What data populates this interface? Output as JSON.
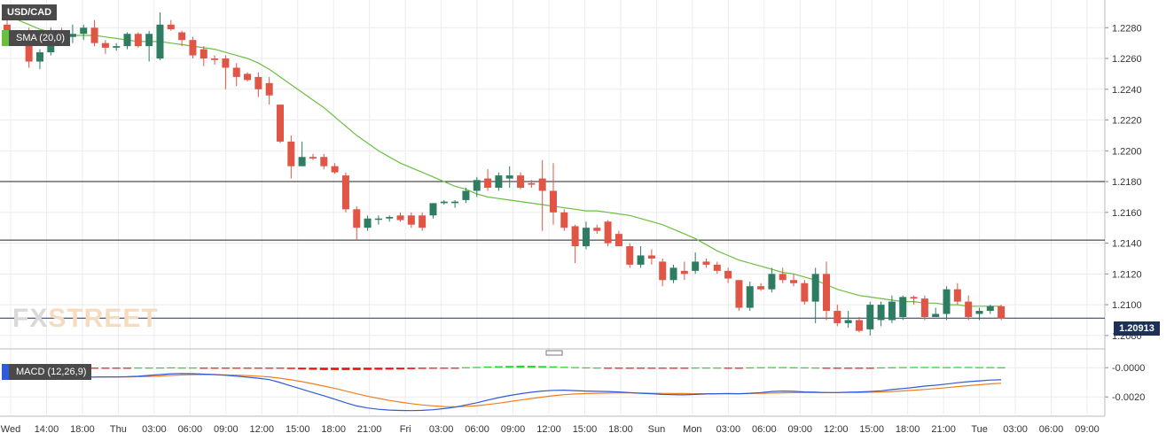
{
  "chart_data": {
    "type": "candlestick",
    "symbol": "USD/CAD",
    "legend": [
      "SMA (20,0)",
      "MACD (12,26,9)"
    ],
    "price_axis": {
      "ticks": [
        "1.2280",
        "1.2260",
        "1.2240",
        "1.2220",
        "1.2200",
        "1.2180",
        "1.2160",
        "1.2140",
        "1.2120",
        "1.2100",
        "1.2080"
      ],
      "range": [
        1.2073,
        1.2298
      ]
    },
    "current_price": "1.20913",
    "horizontal_levels": [
      1.218,
      1.2142,
      1.20913
    ],
    "macd_axis": {
      "ticks": [
        "-0.0000",
        "-0.0020"
      ],
      "range": [
        -0.0032,
        0.0008
      ]
    },
    "time_axis": [
      "Wed",
      "14:00",
      "18:00",
      "Thu",
      "03:00",
      "06:00",
      "09:00",
      "12:00",
      "15:00",
      "18:00",
      "21:00",
      "Fri",
      "03:00",
      "06:00",
      "09:00",
      "12:00",
      "15:00",
      "18:00",
      "Sun",
      "Mon",
      "03:00",
      "06:00",
      "09:00",
      "12:00",
      "15:00",
      "18:00",
      "21:00",
      "Tue",
      "03:00",
      "06:00",
      "09:00"
    ],
    "candles": [
      [
        1.2282,
        1.2286,
        1.227,
        1.2274
      ],
      [
        1.2274,
        1.2278,
        1.2268,
        1.2276
      ],
      [
        1.2276,
        1.228,
        1.2254,
        1.2258
      ],
      [
        1.2258,
        1.2266,
        1.2253,
        1.2264
      ],
      [
        1.2264,
        1.228,
        1.2262,
        1.2276
      ],
      [
        1.2276,
        1.228,
        1.227,
        1.2272
      ],
      [
        1.2274,
        1.2282,
        1.227,
        1.2276
      ],
      [
        1.2276,
        1.2282,
        1.2272,
        1.228
      ],
      [
        1.228,
        1.2285,
        1.2268,
        1.227
      ],
      [
        1.227,
        1.2272,
        1.2263,
        1.2267
      ],
      [
        1.2267,
        1.227,
        1.2265,
        1.2268
      ],
      [
        1.2268,
        1.2277,
        1.2266,
        1.2276
      ],
      [
        1.2276,
        1.2277,
        1.2267,
        1.2268
      ],
      [
        1.2268,
        1.2278,
        1.2258,
        1.2276
      ],
      [
        1.226,
        1.229,
        1.2259,
        1.2282
      ],
      [
        1.2282,
        1.2285,
        1.2278,
        1.2279
      ],
      [
        1.2277,
        1.2278,
        1.2268,
        1.2272
      ],
      [
        1.2272,
        1.2274,
        1.226,
        1.2262
      ],
      [
        1.2266,
        1.2268,
        1.2255,
        1.226
      ],
      [
        1.226,
        1.2262,
        1.2256,
        1.2259
      ],
      [
        1.226,
        1.2262,
        1.224,
        1.2254
      ],
      [
        1.2254,
        1.2257,
        1.2242,
        1.2248
      ],
      [
        1.225,
        1.2251,
        1.2245,
        1.2246
      ],
      [
        1.2248,
        1.2251,
        1.2235,
        1.224
      ],
      [
        1.2244,
        1.2248,
        1.223,
        1.2236
      ],
      [
        1.223,
        1.223,
        1.2205,
        1.2206
      ],
      [
        1.2206,
        1.221,
        1.2182,
        1.219
      ],
      [
        1.219,
        1.2206,
        1.219,
        1.2196
      ],
      [
        1.2196,
        1.2198,
        1.2194,
        1.2195
      ],
      [
        1.2196,
        1.2198,
        1.2188,
        1.219
      ],
      [
        1.219,
        1.2192,
        1.2185,
        1.2186
      ],
      [
        1.2184,
        1.2186,
        1.216,
        1.2162
      ],
      [
        1.2162,
        1.2164,
        1.2142,
        1.215
      ],
      [
        1.215,
        1.2158,
        1.2148,
        1.2156
      ],
      [
        1.2156,
        1.2158,
        1.2152,
        1.2156
      ],
      [
        1.2156,
        1.2158,
        1.2154,
        1.2157
      ],
      [
        1.2158,
        1.216,
        1.2154,
        1.2155
      ],
      [
        1.2158,
        1.216,
        1.215,
        1.2152
      ],
      [
        1.2158,
        1.216,
        1.2148,
        1.215
      ],
      [
        1.2158,
        1.2166,
        1.2156,
        1.2166
      ],
      [
        1.2166,
        1.2168,
        1.2165,
        1.2167
      ],
      [
        1.2166,
        1.2168,
        1.2163,
        1.2167
      ],
      [
        1.2168,
        1.2176,
        1.2166,
        1.2174
      ],
      [
        1.2174,
        1.2183,
        1.217,
        1.2181
      ],
      [
        1.2182,
        1.2188,
        1.2174,
        1.2176
      ],
      [
        1.2176,
        1.2186,
        1.2174,
        1.2184
      ],
      [
        1.2182,
        1.219,
        1.2176,
        1.2184
      ],
      [
        1.2184,
        1.2186,
        1.2175,
        1.2176
      ],
      [
        1.2179,
        1.2181,
        1.2176,
        1.2178
      ],
      [
        1.2182,
        1.2194,
        1.2148,
        1.2174
      ],
      [
        1.2174,
        1.2192,
        1.2152,
        1.216
      ],
      [
        1.216,
        1.2162,
        1.2148,
        1.215
      ],
      [
        1.2151,
        1.2152,
        1.2127,
        1.2138
      ],
      [
        1.2138,
        1.2154,
        1.2136,
        1.215
      ],
      [
        1.215,
        1.2152,
        1.2146,
        1.2148
      ],
      [
        1.2154,
        1.2155,
        1.2138,
        1.214
      ],
      [
        1.2146,
        1.2148,
        1.2138,
        1.2138
      ],
      [
        1.2138,
        1.214,
        1.2124,
        1.2126
      ],
      [
        1.2126,
        1.2138,
        1.2124,
        1.2132
      ],
      [
        1.2132,
        1.2136,
        1.2126,
        1.213
      ],
      [
        1.2128,
        1.213,
        1.2112,
        1.2116
      ],
      [
        1.2116,
        1.2126,
        1.2114,
        1.2124
      ],
      [
        1.2122,
        1.2128,
        1.2116,
        1.212
      ],
      [
        1.2122,
        1.2134,
        1.212,
        1.2128
      ],
      [
        1.2128,
        1.213,
        1.2124,
        1.2126
      ],
      [
        1.2126,
        1.2128,
        1.212,
        1.2122
      ],
      [
        1.2122,
        1.2124,
        1.2114,
        1.2117
      ],
      [
        1.2116,
        1.2116,
        1.2096,
        1.2098
      ],
      [
        1.2098,
        1.2115,
        1.2096,
        1.2112
      ],
      [
        1.2112,
        1.2114,
        1.2109,
        1.211
      ],
      [
        1.211,
        1.2124,
        1.2108,
        1.212
      ],
      [
        1.212,
        1.2124,
        1.2114,
        1.2116
      ],
      [
        1.2116,
        1.212,
        1.2112,
        1.2114
      ],
      [
        1.2114,
        1.2116,
        1.21,
        1.2102
      ],
      [
        1.2102,
        1.2124,
        1.2088,
        1.212
      ],
      [
        1.212,
        1.2128,
        1.209,
        1.2096
      ],
      [
        1.2096,
        1.21,
        1.2086,
        1.2088
      ],
      [
        1.2088,
        1.2096,
        1.2085,
        1.209
      ],
      [
        1.209,
        1.2092,
        1.2082,
        1.2083
      ],
      [
        1.2084,
        1.2102,
        1.208,
        1.21
      ],
      [
        1.209,
        1.2102,
        1.2086,
        1.21
      ],
      [
        1.209,
        1.2106,
        1.2088,
        1.2102
      ],
      [
        1.2092,
        1.2106,
        1.209,
        1.2105
      ],
      [
        1.2105,
        1.2106,
        1.21,
        1.2104
      ],
      [
        1.2104,
        1.2106,
        1.209,
        1.2092
      ],
      [
        1.2092,
        1.2098,
        1.2092,
        1.2094
      ],
      [
        1.2094,
        1.2112,
        1.209,
        1.211
      ],
      [
        1.211,
        1.2114,
        1.21,
        1.2102
      ],
      [
        1.2102,
        1.2106,
        1.209,
        1.2092
      ],
      [
        1.2094,
        1.2098,
        1.209,
        1.2096
      ],
      [
        1.2096,
        1.21,
        1.2094,
        1.2099
      ],
      [
        1.2099,
        1.21,
        1.209,
        1.2091
      ]
    ],
    "sma": [
      1.2288,
      1.2285,
      1.2282,
      1.2279,
      1.2277,
      1.2276,
      1.2275,
      1.2275,
      1.2275,
      1.2274,
      1.2273,
      1.2272,
      1.2271,
      1.2271,
      1.2271,
      1.227,
      1.2269,
      1.2268,
      1.2267,
      1.2266,
      1.2264,
      1.2262,
      1.226,
      1.2257,
      1.2253,
      1.2248,
      1.2243,
      1.2238,
      1.2233,
      1.2228,
      1.2222,
      1.2216,
      1.221,
      1.2205,
      1.22,
      1.2196,
      1.2192,
      1.2189,
      1.2186,
      1.2183,
      1.218,
      1.2177,
      1.2175,
      1.2172,
      1.217,
      1.2169,
      1.2168,
      1.2167,
      1.2166,
      1.2165,
      1.2164,
      1.2163,
      1.2162,
      1.2161,
      1.2161,
      1.216,
      1.2159,
      1.2158,
      1.2156,
      1.2154,
      1.2152,
      1.2149,
      1.2146,
      1.2143,
      1.2139,
      1.2135,
      1.2132,
      1.2129,
      1.2127,
      1.2125,
      1.2123,
      1.2121,
      1.212,
      1.2118,
      1.2116,
      1.2113,
      1.211,
      1.2108,
      1.2106,
      1.2105,
      1.2104,
      1.2103,
      1.2102,
      1.2102,
      1.2101,
      1.2101,
      1.21,
      1.21,
      1.2099,
      1.2099,
      1.2099,
      1.2099
    ],
    "macd_hist": [
      -8e-05,
      -5e-05,
      -3e-05,
      -2e-05,
      -1e-05,
      -1e-05,
      -1e-05,
      -1e-05,
      -1e-05,
      -1e-05,
      -1e-05,
      -1e-05,
      1e-05,
      1e-05,
      1e-05,
      2e-05,
      1e-05,
      1e-05,
      -1e-05,
      -2e-05,
      -1e-05,
      -1e-05,
      -1e-05,
      -1e-05,
      -3e-05,
      -6e-05,
      -9e-05,
      -0.00012,
      -0.00014,
      -0.00016,
      -0.00016,
      -0.00016,
      -0.00016,
      -0.00015,
      -0.00014,
      -0.00013,
      -0.00012,
      -0.0001,
      -8e-05,
      -6e-05,
      -3e-05,
      -1e-05,
      3e-05,
      5e-05,
      8e-05,
      0.0001,
      0.00012,
      0.00014,
      0.00013,
      0.00011,
      9e-05,
      6e-05,
      4e-05,
      2e-05,
      1e-05,
      -1e-05,
      -2e-05,
      -3e-05,
      -2e-05,
      -1e-05,
      -1e-05,
      -1e-05,
      -1e-05,
      1e-05,
      1e-05,
      1e-05,
      -1e-05,
      -1e-05,
      2e-05,
      3e-05,
      4e-05,
      4e-05,
      3e-05,
      2e-05,
      1e-05,
      -1e-05,
      -2e-05,
      -1e-05,
      -1e-05,
      -1e-05,
      2e-05,
      3e-05,
      4e-05,
      5e-05,
      5e-05,
      5e-05,
      4e-05,
      5e-05,
      5e-05,
      4e-05,
      4e-05,
      3e-05
    ],
    "macd_line": [
      -0.0006,
      -0.00061,
      -0.00062,
      -0.00065,
      -0.00068,
      -0.0007,
      -0.00069,
      -0.00066,
      -0.00064,
      -0.00063,
      -0.00063,
      -0.00062,
      -0.00058,
      -0.00053,
      -0.00047,
      -0.00042,
      -0.0004,
      -0.00041,
      -0.00044,
      -0.00047,
      -0.00052,
      -0.00058,
      -0.00065,
      -0.00072,
      -0.00082,
      -0.00102,
      -0.00125,
      -0.00148,
      -0.0017,
      -0.00192,
      -0.00216,
      -0.0024,
      -0.00262,
      -0.00276,
      -0.00285,
      -0.0029,
      -0.00293,
      -0.00294,
      -0.00292,
      -0.00288,
      -0.0028,
      -0.0027,
      -0.00255,
      -0.0024,
      -0.00222,
      -0.00205,
      -0.0019,
      -0.00178,
      -0.00168,
      -0.0016,
      -0.00155,
      -0.00154,
      -0.00157,
      -0.0016,
      -0.00162,
      -0.00163,
      -0.00166,
      -0.0017,
      -0.00175,
      -0.00178,
      -0.00183,
      -0.00185,
      -0.00186,
      -0.00183,
      -0.0018,
      -0.00178,
      -0.00177,
      -0.00178,
      -0.00175,
      -0.0017,
      -0.00163,
      -0.0016,
      -0.00162,
      -0.00166,
      -0.00168,
      -0.0017,
      -0.0017,
      -0.00168,
      -0.00166,
      -0.00163,
      -0.00158,
      -0.0015,
      -0.00143,
      -0.00135,
      -0.00126,
      -0.0012,
      -0.00112,
      -0.00103,
      -0.00096,
      -0.0009,
      -0.00085,
      -0.00083
    ],
    "signal_line": [
      -0.00052,
      -0.00055,
      -0.00058,
      -0.00061,
      -0.00063,
      -0.00064,
      -0.00065,
      -0.00065,
      -0.00064,
      -0.00063,
      -0.00063,
      -0.00063,
      -0.00062,
      -0.0006,
      -0.00057,
      -0.00053,
      -0.0005,
      -0.00048,
      -0.00047,
      -0.00047,
      -0.00049,
      -0.00051,
      -0.00054,
      -0.00058,
      -0.00063,
      -0.00072,
      -0.00083,
      -0.00096,
      -0.0011,
      -0.00126,
      -0.00142,
      -0.0016,
      -0.00178,
      -0.00195,
      -0.0021,
      -0.00224,
      -0.00236,
      -0.00246,
      -0.00255,
      -0.00261,
      -0.00266,
      -0.00268,
      -0.00265,
      -0.0026,
      -0.00252,
      -0.00243,
      -0.00232,
      -0.00221,
      -0.00211,
      -0.00201,
      -0.00192,
      -0.00185,
      -0.0018,
      -0.00177,
      -0.00175,
      -0.00174,
      -0.00173,
      -0.00173,
      -0.00174,
      -0.00175,
      -0.00176,
      -0.00177,
      -0.00177,
      -0.00178,
      -0.00178,
      -0.00178,
      -0.00178,
      -0.00178,
      -0.00177,
      -0.00176,
      -0.00174,
      -0.00172,
      -0.00171,
      -0.0017,
      -0.0017,
      -0.0017,
      -0.0017,
      -0.00169,
      -0.00169,
      -0.00168,
      -0.00166,
      -0.00163,
      -0.00159,
      -0.00154,
      -0.00149,
      -0.00143,
      -0.00137,
      -0.0013,
      -0.00123,
      -0.00117,
      -0.00111,
      -0.00106
    ],
    "colors": {
      "up": "#2e7d63",
      "down": "#e05545",
      "sma": "#6abf40",
      "macd": "#2f5ad9",
      "signal": "#f07f22",
      "hist_pos": "#22d62b",
      "hist_neg": "#f20f0f",
      "grid": "#ececec",
      "level": "#222222",
      "current": "#1e3058"
    },
    "grid": true,
    "watermark": {
      "part1": "FX",
      "part2": "STREET"
    }
  }
}
